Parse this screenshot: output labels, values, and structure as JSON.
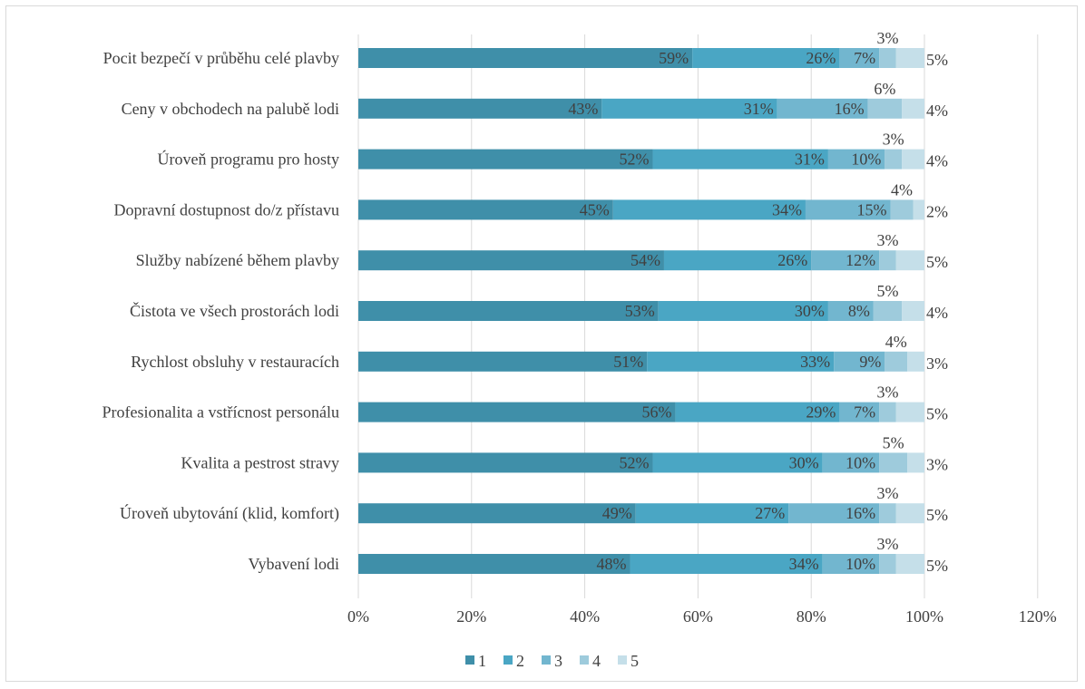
{
  "chart_data": {
    "type": "bar",
    "orientation": "horizontal",
    "stacked": true,
    "categories": [
      "Pocit bezpečí v průběhu celé plavby",
      "Ceny v obchodech na palubě lodi",
      "Úroveň programu pro hosty",
      "Dopravní dostupnost do/z přístavu",
      "Služby nabízené během plavby",
      "Čistota ve všech prostorách lodi",
      "Rychlost obsluhy v restauracích",
      "Profesionalita a vstřícnost personálu",
      "Kvalita a pestrost stravy",
      "Úroveň ubytování (klid, komfort)",
      "Vybavení lodi"
    ],
    "series": [
      {
        "name": "1",
        "color": "#3f8fa9",
        "values": [
          59,
          43,
          52,
          45,
          54,
          53,
          51,
          56,
          52,
          49,
          48
        ]
      },
      {
        "name": "2",
        "color": "#4aa6c4",
        "values": [
          26,
          31,
          31,
          34,
          26,
          30,
          33,
          29,
          30,
          27,
          34
        ]
      },
      {
        "name": "3",
        "color": "#72b6cf",
        "values": [
          7,
          16,
          10,
          15,
          12,
          8,
          9,
          7,
          10,
          16,
          10
        ]
      },
      {
        "name": "4",
        "color": "#9ecbdc",
        "values": [
          3,
          6,
          3,
          4,
          3,
          5,
          4,
          3,
          5,
          3,
          3
        ]
      },
      {
        "name": "5",
        "color": "#c5dfe9",
        "values": [
          5,
          4,
          4,
          2,
          5,
          4,
          3,
          5,
          3,
          5,
          5
        ]
      }
    ],
    "value_labels": [
      [
        "59%",
        "26%",
        "7%",
        "3%",
        "5%"
      ],
      [
        "43%",
        "31%",
        "16%",
        "6%",
        "4%"
      ],
      [
        "52%",
        "31%",
        "10%",
        "3%",
        "4%"
      ],
      [
        "45%",
        "34%",
        "15%",
        "4%",
        "2%"
      ],
      [
        "54%",
        "26%",
        "12%",
        "3%",
        "5%"
      ],
      [
        "53%",
        "30%",
        "8%",
        "5%",
        "4%"
      ],
      [
        "51%",
        "33%",
        "9%",
        "4%",
        "3%"
      ],
      [
        "56%",
        "29%",
        "7%",
        "3%",
        "5%"
      ],
      [
        "52%",
        "30%",
        "10%",
        "5%",
        "3%"
      ],
      [
        "49%",
        "27%",
        "16%",
        "3%",
        "5%"
      ],
      [
        "48%",
        "34%",
        "10%",
        "3%",
        "5%"
      ]
    ],
    "x_ticks": [
      "0%",
      "20%",
      "40%",
      "60%",
      "80%",
      "100%",
      "120%"
    ],
    "xlim": [
      0,
      120
    ],
    "title": "",
    "xlabel": "",
    "ylabel": "",
    "grid": "vertical",
    "legend_position": "bottom"
  }
}
